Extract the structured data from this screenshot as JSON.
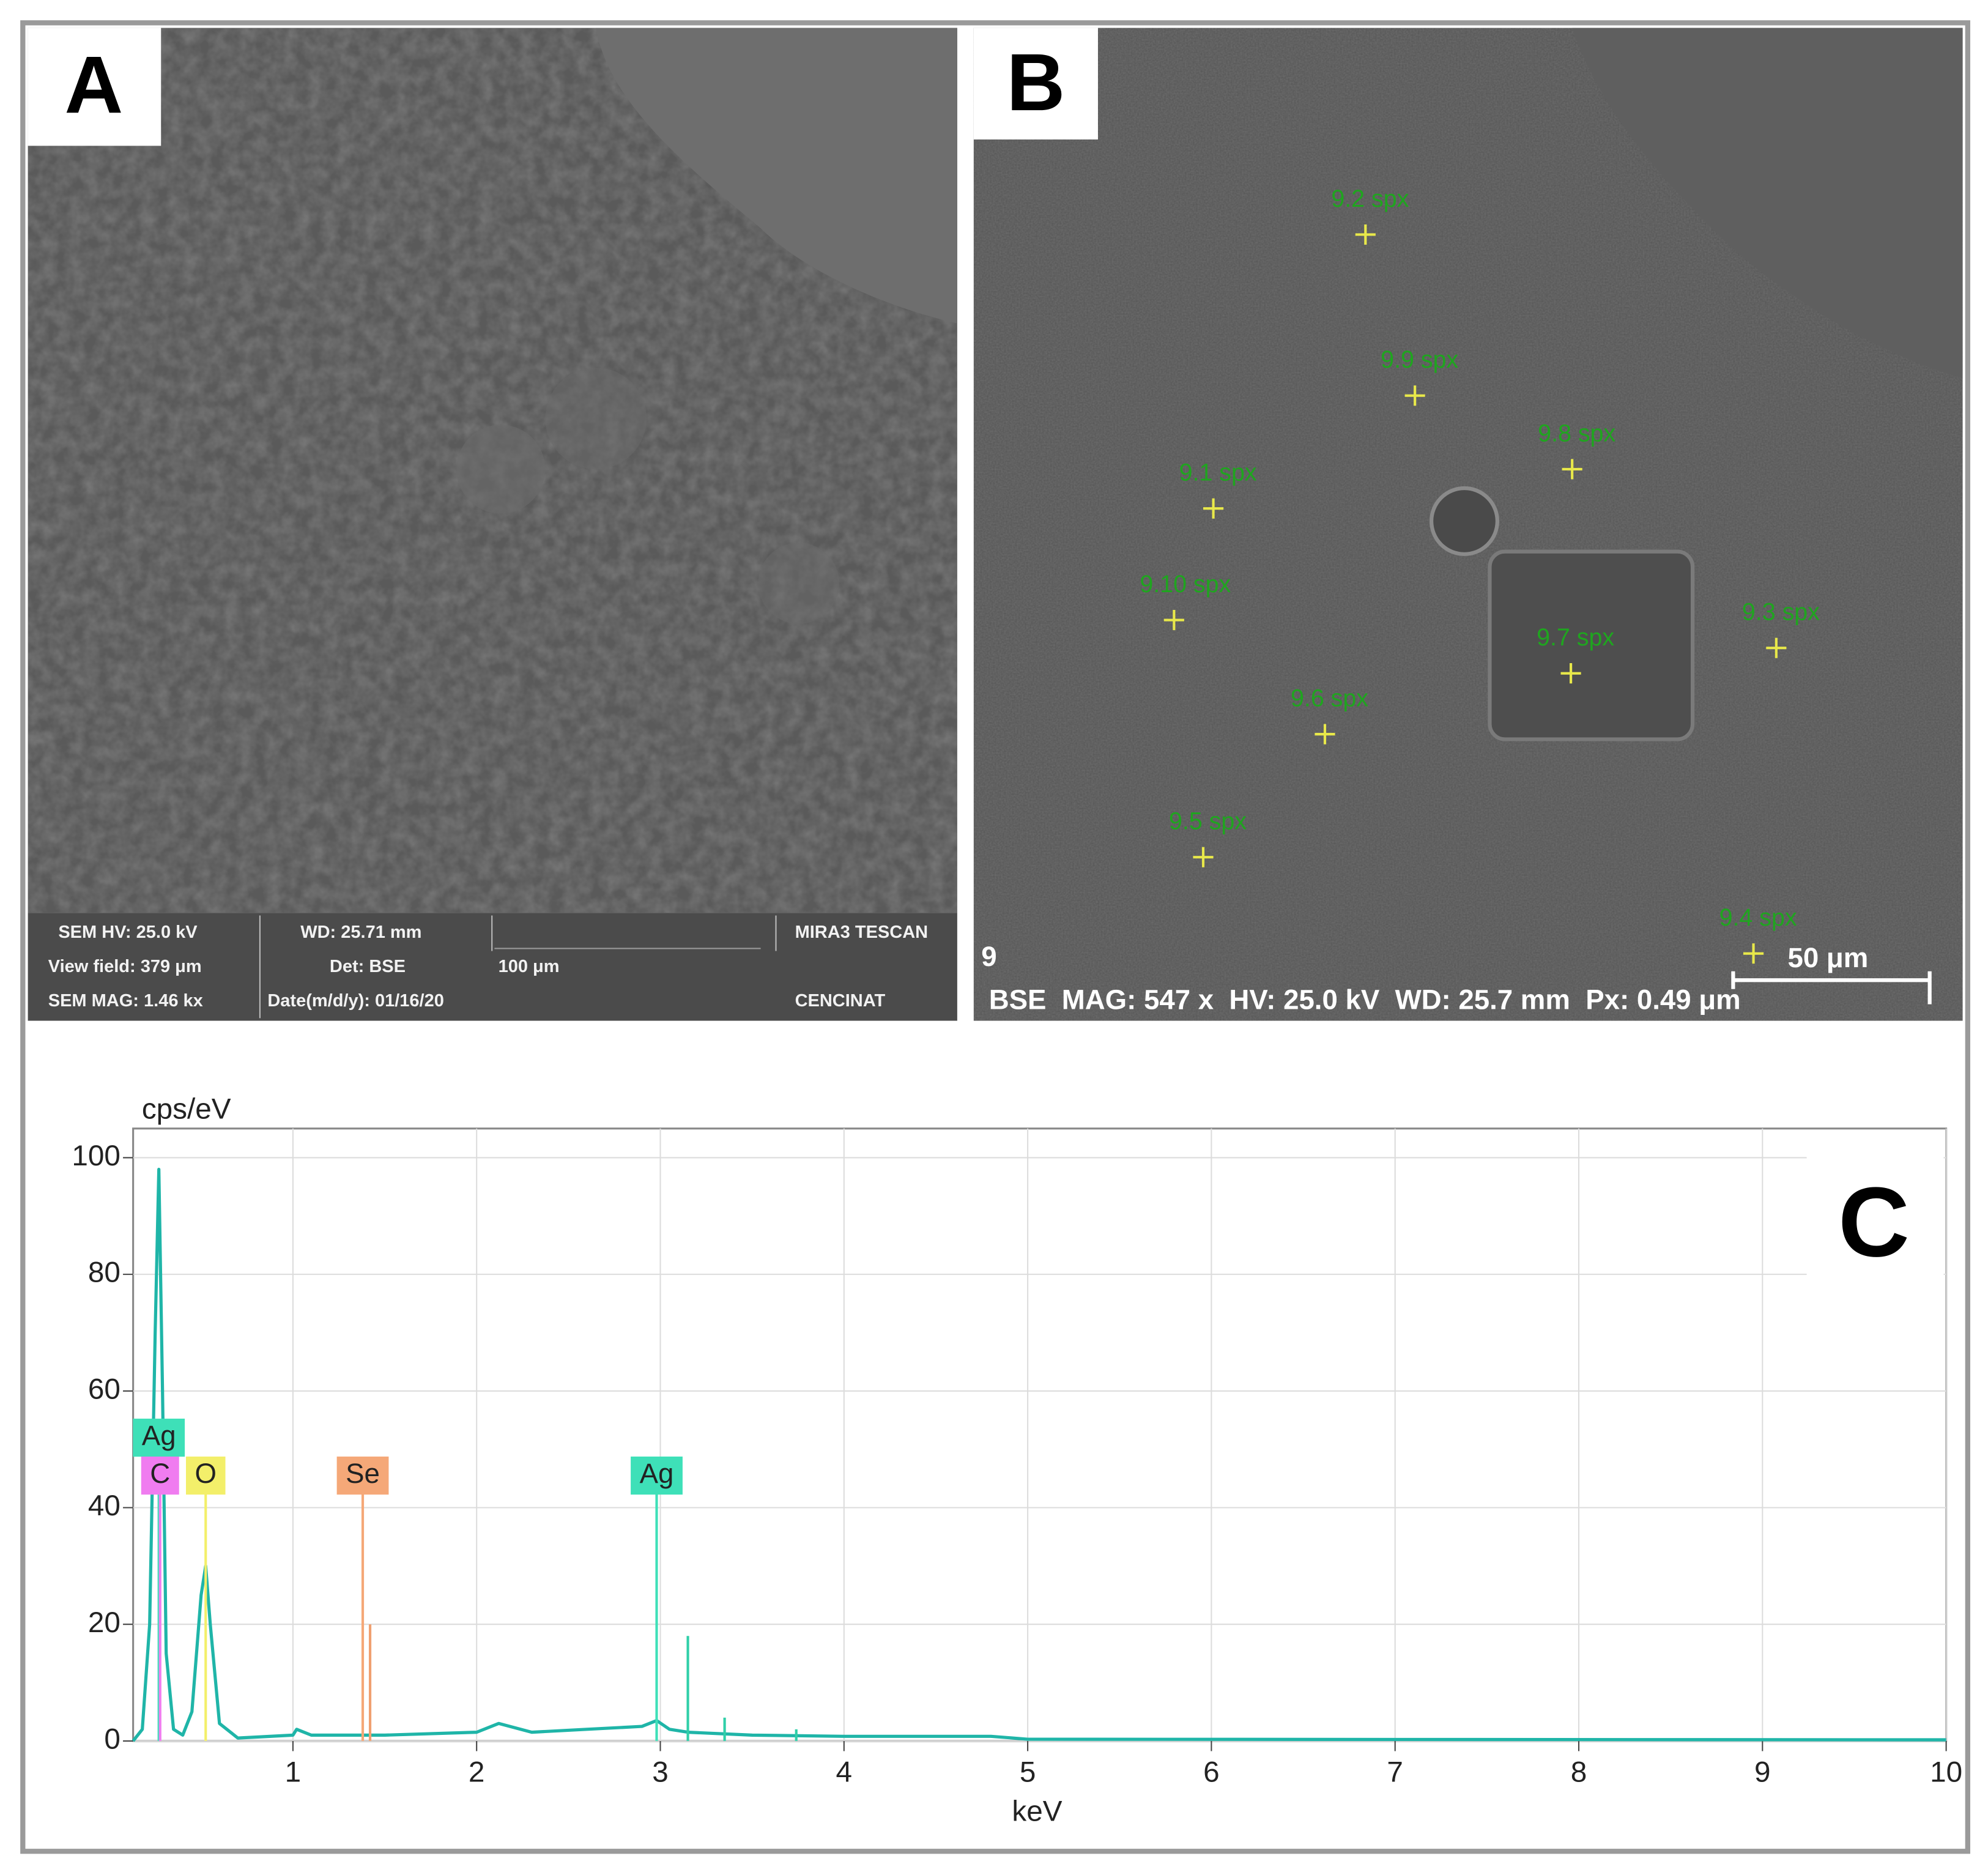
{
  "panel_a": {
    "label": "A",
    "info": [
      "SEM HV: 25.0 kV",
      "WD: 25.71 mm",
      "MIRA3 TESCAN",
      "View field: 379 μm",
      "Det: BSE",
      "100 μm",
      "SEM MAG: 1.46 kx",
      "Date(m/d/y): 01/16/20",
      "CENCINAT"
    ]
  },
  "panel_b": {
    "label": "B",
    "spots": [
      "9.2 spx",
      "9.9 spx",
      "9.8 spx",
      "9.1 spx",
      "9.10 spx",
      "9.3 spx",
      "9.7 spx",
      "9.6 spx",
      "9.5 spx",
      "9.4 spx"
    ],
    "frame": "9",
    "scale_bar": "50 μm",
    "info": "BSE  MAG: 547 x  HV: 25.0 kV  WD: 25.7 mm  Px: 0.49 μm"
  },
  "chart_data": {
    "type": "line",
    "panel_label": "C",
    "xlabel": "keV",
    "ylabel": "cps/eV",
    "xlim": [
      0.13,
      10
    ],
    "ylim": [
      0,
      105
    ],
    "xticks": [
      1,
      2,
      3,
      4,
      5,
      6,
      7,
      8,
      9,
      10
    ],
    "yticks": [
      0,
      20,
      40,
      60,
      80,
      100
    ],
    "grid": true,
    "color": "#1fb5a8",
    "x": [
      0.13,
      0.18,
      0.22,
      0.25,
      0.27,
      0.29,
      0.31,
      0.35,
      0.4,
      0.45,
      0.5,
      0.525,
      0.55,
      0.6,
      0.7,
      1.0,
      1.02,
      1.1,
      1.5,
      2.0,
      2.12,
      2.3,
      2.6,
      2.9,
      2.98,
      3.05,
      3.15,
      3.5,
      4.0,
      4.8,
      5.0,
      10.0
    ],
    "values": [
      0,
      2,
      20,
      70,
      98,
      60,
      15,
      2,
      1,
      5,
      25,
      30,
      20,
      3,
      0.5,
      1,
      2,
      1,
      1,
      1.5,
      3,
      1.5,
      2,
      2.5,
      3.5,
      2,
      1.5,
      1,
      0.8,
      0.8,
      0.3,
      0.2
    ],
    "peaks": [
      {
        "label": "Ag",
        "x": 0.27,
        "y": 52,
        "color": "#3ee0b8"
      },
      {
        "label": "C",
        "x": 0.277,
        "y": 45.5,
        "color": "#f07cf0"
      },
      {
        "label": "O",
        "x": 0.525,
        "y": 45.5,
        "color": "#f3ef6a"
      },
      {
        "label": "Se",
        "x": 1.38,
        "y": 45.5,
        "color": "#f5a878"
      },
      {
        "label": "Ag",
        "x": 2.98,
        "y": 45.5,
        "color": "#3ee0b8"
      }
    ],
    "lines": [
      {
        "x": 1.42,
        "y": 20,
        "color": "#f0a070"
      },
      {
        "x": 3.15,
        "y": 18,
        "color": "#2fcfa8"
      },
      {
        "x": 3.35,
        "y": 4,
        "color": "#2fcfa8"
      },
      {
        "x": 3.74,
        "y": 2,
        "color": "#2fcfa8"
      }
    ]
  }
}
